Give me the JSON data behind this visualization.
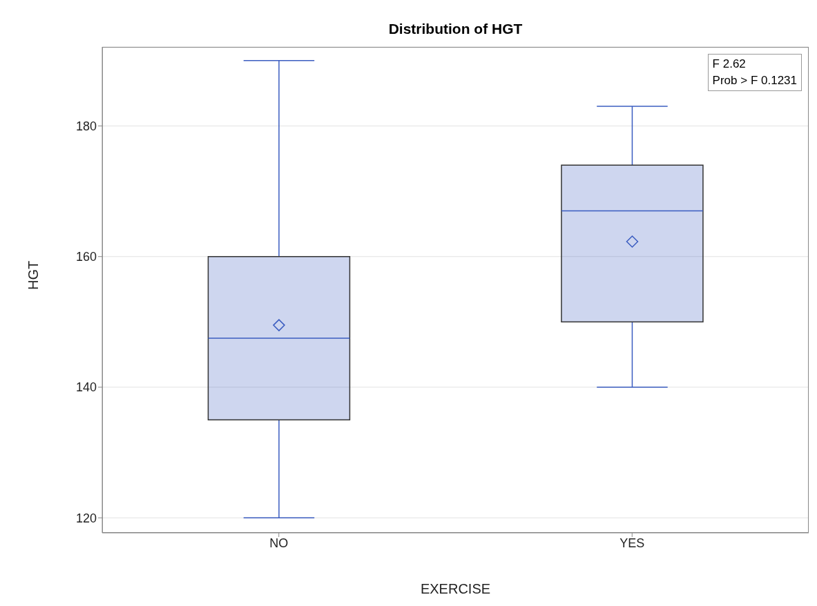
{
  "chart_data": {
    "type": "box",
    "title": "Distribution of HGT",
    "xlabel": "EXERCISE",
    "ylabel": "HGT",
    "categories": [
      "NO",
      "YES"
    ],
    "series": [
      {
        "color": "#3a5cc0",
        "boxes": [
          {
            "low": 120,
            "q1": 135,
            "median": 147.5,
            "q3": 160,
            "high": 190,
            "mean": 149.5
          },
          {
            "low": 140,
            "q1": 150,
            "median": 167,
            "q3": 174,
            "high": 183,
            "mean": 162.3
          }
        ]
      }
    ],
    "ylim": [
      117.7,
      192.1
    ],
    "yticks": [
      120,
      140,
      160,
      180
    ],
    "grid": "y",
    "annotations": [
      "F 2.62",
      "Prob > F 0.1231"
    ]
  }
}
